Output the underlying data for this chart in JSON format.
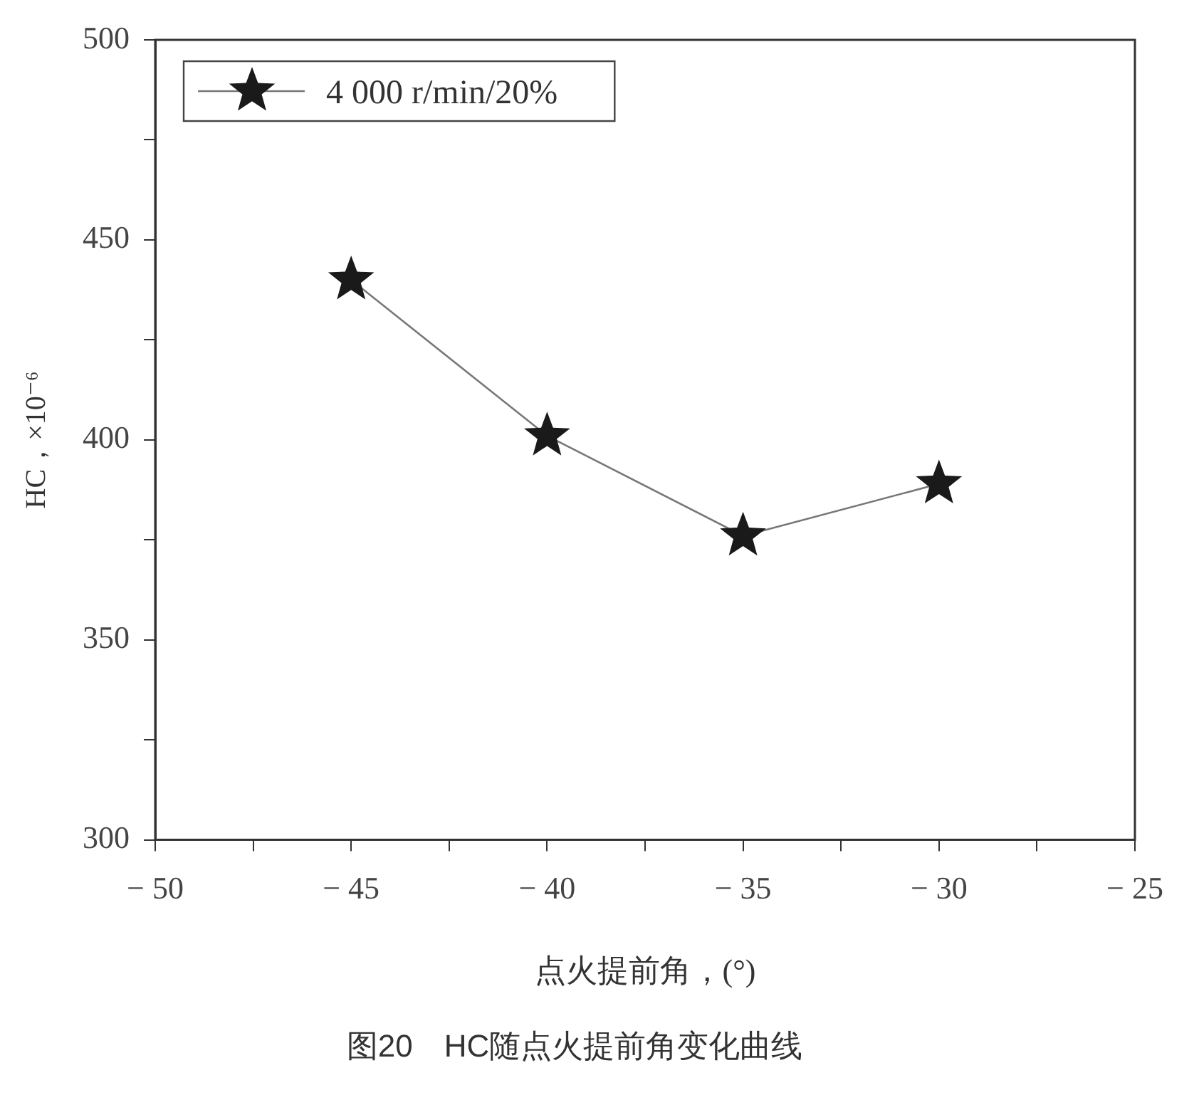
{
  "chart_data": {
    "type": "line",
    "title": "图20　HC随点火提前角变化曲线",
    "xlabel": "点火提前角，(°)",
    "ylabel": "HC，×10⁻⁶",
    "x": [
      -45,
      -40,
      -35,
      -30
    ],
    "series": [
      {
        "name": "4 000 r/min/20%",
        "color": "#1a1a1a",
        "values": [
          440,
          401,
          376,
          389
        ]
      }
    ],
    "xlim": [
      -50,
      -25
    ],
    "xticks": [
      -50,
      {
        "value": -47.5,
        "label": null
      },
      -45,
      {
        "value": -42.5,
        "label": null
      },
      -40,
      {
        "value": -37.5,
        "label": null
      },
      -35,
      {
        "value": -32.5,
        "label": null
      },
      -30,
      {
        "value": -27.5,
        "label": null
      },
      -25
    ],
    "ylim": [
      300,
      500
    ],
    "yticks": [
      300,
      {
        "value": 325,
        "label": null
      },
      350,
      {
        "value": 375,
        "label": null
      },
      400,
      {
        "value": 425,
        "label": null
      },
      450,
      {
        "value": 475,
        "label": null
      },
      500
    ],
    "grid": false,
    "legend": "top left",
    "marker": "star",
    "line_style": "solid"
  }
}
